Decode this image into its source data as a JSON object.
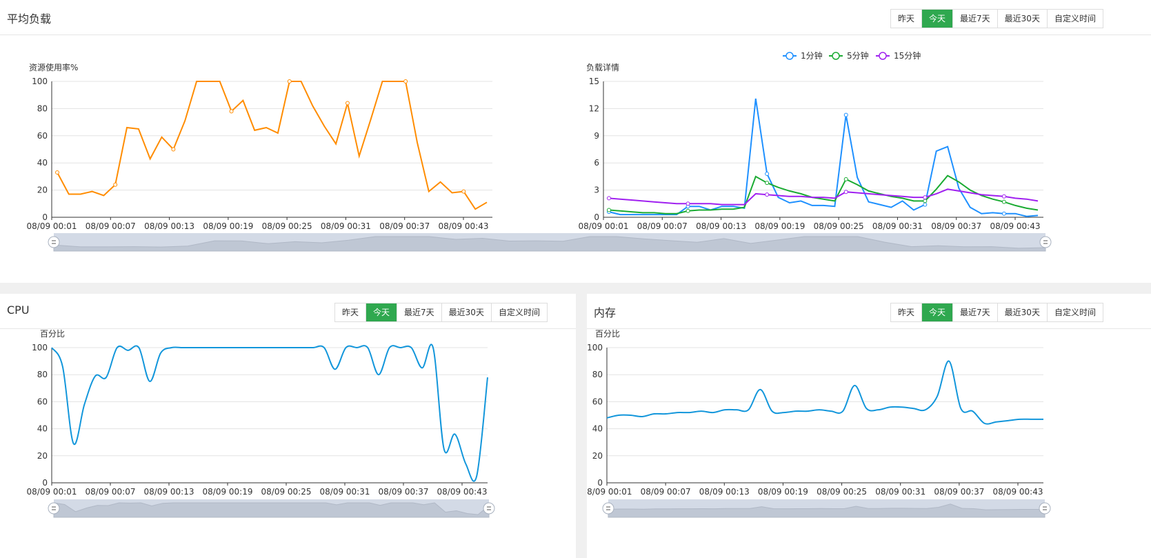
{
  "tabs": [
    "昨天",
    "今天",
    "最近7天",
    "最近30天",
    "自定义时间"
  ],
  "active_tab": 1,
  "panels": {
    "load": {
      "title": "平均负载"
    },
    "cpu": {
      "title": "CPU"
    },
    "mem": {
      "title": "内存"
    }
  },
  "x_ticks": [
    "08/09 00:01",
    "08/09 00:07",
    "08/09 00:13",
    "08/09 00:19",
    "08/09 00:25",
    "08/09 00:31",
    "08/09 00:37",
    "08/09 00:43"
  ],
  "chart_data": [
    {
      "id": "usage",
      "type": "line",
      "ylabel": "资源使用率%",
      "ylim": [
        0,
        100
      ],
      "yticks": [
        0,
        20,
        40,
        60,
        80,
        100
      ],
      "color": "#ff8c00",
      "grid": true,
      "series": [
        {
          "values": [
            33,
            17,
            17,
            19,
            16,
            24,
            66,
            65,
            43,
            59,
            50,
            71,
            100,
            100,
            100,
            78,
            86,
            64,
            66,
            62,
            100,
            100,
            82,
            67,
            54,
            84,
            45,
            72,
            100,
            100,
            100,
            55,
            19,
            26,
            18,
            19,
            6,
            11
          ]
        }
      ]
    },
    {
      "id": "load-detail",
      "type": "line",
      "ylabel": "负载详情",
      "ylim": [
        0,
        15
      ],
      "yticks": [
        0,
        3,
        6,
        9,
        12,
        15
      ],
      "grid": true,
      "legend_position": "top-center",
      "series": [
        {
          "name": "1分钟",
          "color": "#1e90ff",
          "values": [
            0.6,
            0.3,
            0.3,
            0.3,
            0.3,
            0.3,
            0.3,
            1.2,
            1.2,
            0.8,
            1.2,
            1.2,
            1.0,
            13.1,
            4.8,
            2.2,
            1.6,
            1.8,
            1.3,
            1.3,
            1.2,
            11.3,
            4.4,
            1.7,
            1.4,
            1.1,
            1.8,
            0.8,
            1.4,
            7.3,
            7.8,
            3.2,
            1.1,
            0.4,
            0.5,
            0.4,
            0.4,
            0.1,
            0.2
          ]
        },
        {
          "name": "5分钟",
          "color": "#1aab32",
          "values": [
            0.8,
            0.7,
            0.6,
            0.5,
            0.5,
            0.4,
            0.4,
            0.7,
            0.8,
            0.8,
            0.9,
            0.9,
            1.1,
            4.5,
            3.8,
            3.3,
            2.9,
            2.6,
            2.2,
            2.0,
            1.8,
            4.2,
            3.6,
            2.9,
            2.6,
            2.3,
            2.1,
            1.8,
            1.8,
            3.1,
            4.6,
            3.9,
            3.0,
            2.4,
            2.0,
            1.7,
            1.3,
            1.0,
            0.8
          ]
        },
        {
          "name": "15分钟",
          "color": "#a020f0",
          "values": [
            2.1,
            2.0,
            1.9,
            1.8,
            1.7,
            1.6,
            1.5,
            1.5,
            1.5,
            1.5,
            1.4,
            1.4,
            1.4,
            2.6,
            2.5,
            2.4,
            2.3,
            2.3,
            2.2,
            2.2,
            2.1,
            2.8,
            2.7,
            2.6,
            2.5,
            2.4,
            2.3,
            2.2,
            2.2,
            2.6,
            3.1,
            2.9,
            2.7,
            2.5,
            2.4,
            2.3,
            2.1,
            2.0,
            1.8
          ]
        }
      ]
    },
    {
      "id": "cpu",
      "type": "line",
      "ylabel": "百分比",
      "ylim": [
        0,
        100
      ],
      "yticks": [
        0,
        20,
        40,
        60,
        80,
        100
      ],
      "color": "#1296db",
      "grid": true,
      "series": [
        {
          "values": [
            100,
            86,
            29,
            58,
            79,
            78,
            100,
            98,
            100,
            75,
            96,
            100,
            100,
            100,
            100,
            100,
            100,
            100,
            100,
            100,
            100,
            100,
            100,
            100,
            100,
            100,
            84,
            100,
            100,
            100,
            80,
            100,
            100,
            100,
            85,
            100,
            25,
            36,
            14,
            5,
            78
          ]
        }
      ]
    },
    {
      "id": "mem",
      "type": "line",
      "ylabel": "百分比",
      "ylim": [
        0,
        100
      ],
      "yticks": [
        0,
        20,
        40,
        60,
        80,
        100
      ],
      "color": "#1296db",
      "grid": true,
      "series": [
        {
          "values": [
            48,
            50,
            50,
            49,
            51,
            51,
            52,
            52,
            53,
            52,
            54,
            54,
            54,
            69,
            53,
            52,
            53,
            53,
            54,
            53,
            53,
            72,
            55,
            54,
            56,
            56,
            55,
            54,
            64,
            90,
            55,
            53,
            44,
            45,
            46,
            47,
            47,
            47
          ]
        }
      ]
    }
  ]
}
